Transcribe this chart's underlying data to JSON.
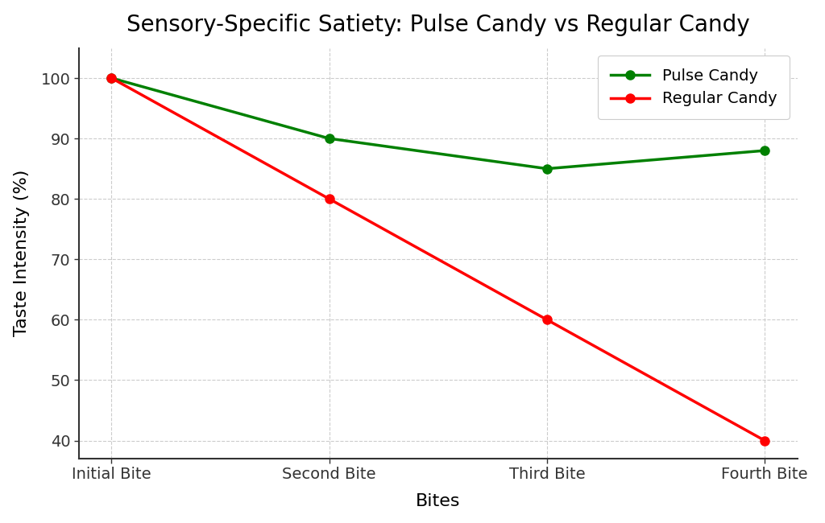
{
  "title": "Sensory-Specific Satiety: Pulse Candy vs Regular Candy",
  "xlabel": "Bites",
  "ylabel": "Taste Intensity (%)",
  "categories": [
    "Initial Bite",
    "Second Bite",
    "Third Bite",
    "Fourth Bite"
  ],
  "pulse_candy": [
    100,
    90,
    85,
    88
  ],
  "regular_candy": [
    100,
    80,
    60,
    40
  ],
  "pulse_color": "#008000",
  "regular_color": "#ff0000",
  "ylim": [
    37,
    105
  ],
  "yticks": [
    40,
    50,
    60,
    70,
    80,
    90,
    100
  ],
  "title_fontsize": 20,
  "axis_label_fontsize": 16,
  "tick_fontsize": 14,
  "legend_fontsize": 14,
  "line_width": 2.5,
  "marker_size": 8,
  "background_color": "#ffffff",
  "grid_color": "#cccccc",
  "grid_style": "--",
  "spine_color": "#333333",
  "figsize": [
    10.24,
    6.5
  ],
  "dpi": 100
}
